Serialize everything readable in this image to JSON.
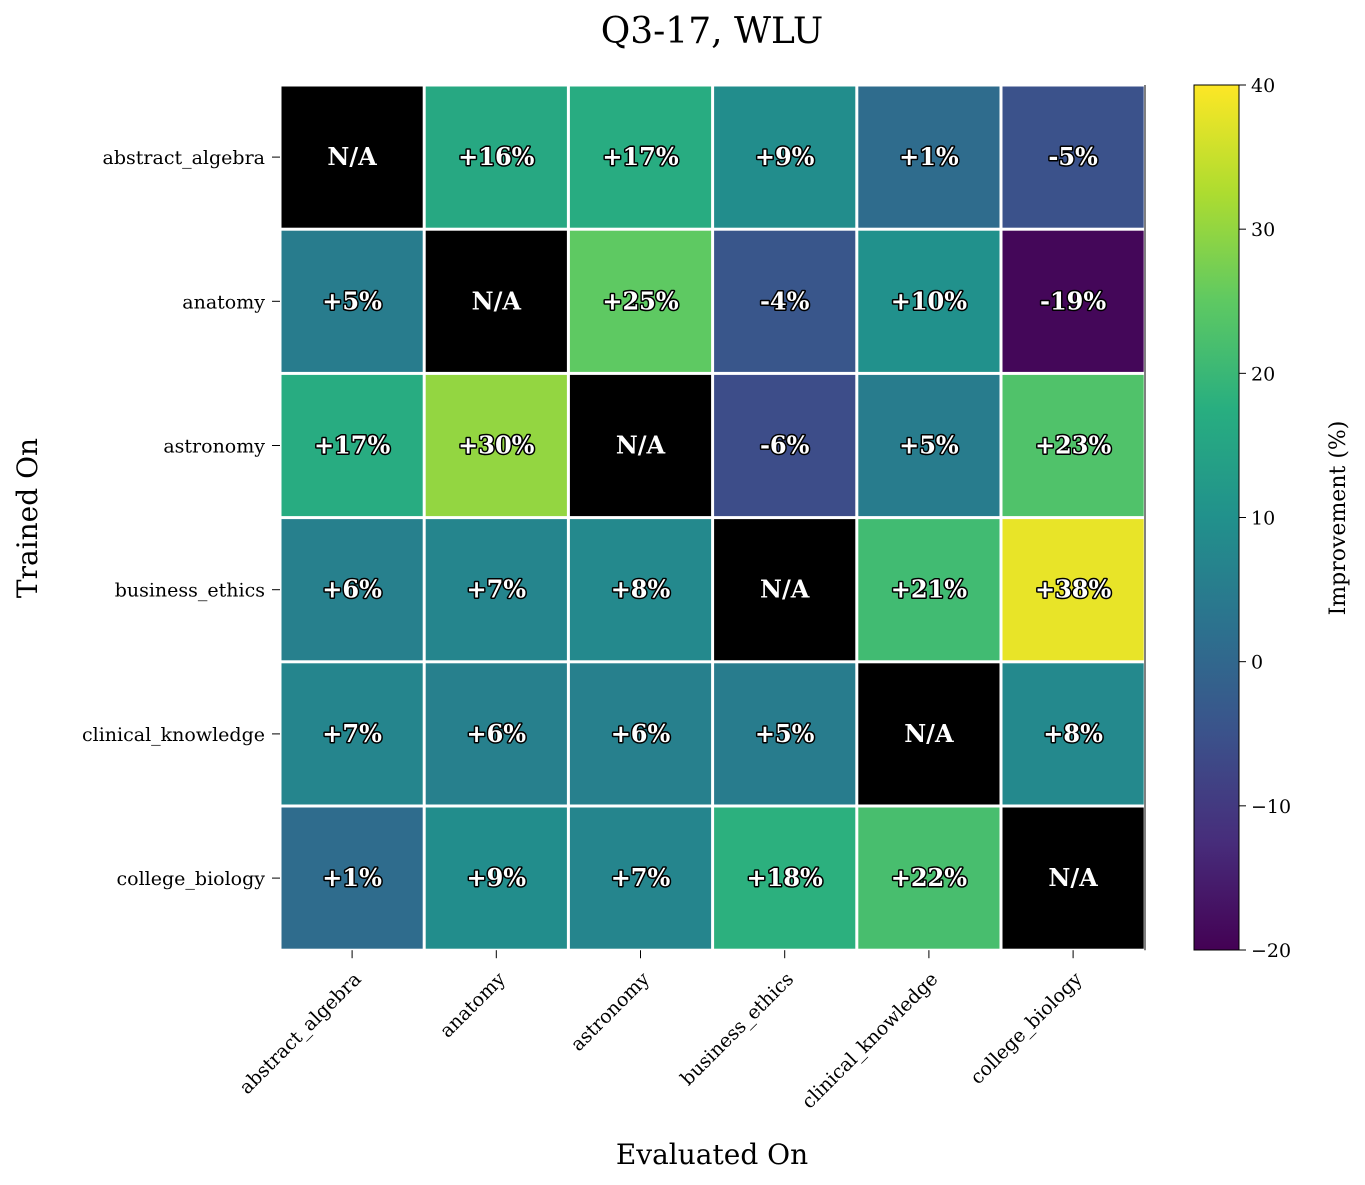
{
  "chart_data": {
    "type": "heatmap",
    "title": "Q3-17, WLU",
    "xlabel": "Evaluated On",
    "ylabel": "Trained On",
    "x_categories": [
      "abstract_algebra",
      "anatomy",
      "astronomy",
      "business_ethics",
      "clinical_knowledge",
      "college_biology"
    ],
    "y_categories": [
      "abstract_algebra",
      "anatomy",
      "astronomy",
      "business_ethics",
      "clinical_knowledge",
      "college_biology"
    ],
    "values": [
      [
        null,
        16,
        17,
        9,
        1,
        -5
      ],
      [
        5,
        null,
        25,
        -4,
        10,
        -19
      ],
      [
        17,
        30,
        null,
        -6,
        5,
        23
      ],
      [
        6,
        7,
        8,
        null,
        21,
        38
      ],
      [
        7,
        6,
        6,
        5,
        null,
        8
      ],
      [
        1,
        9,
        7,
        18,
        22,
        null
      ]
    ],
    "labels": [
      [
        "N/A",
        "+16%",
        "+17%",
        "+9%",
        "+1%",
        "-5%"
      ],
      [
        "+5%",
        "N/A",
        "+25%",
        "-4%",
        "+10%",
        "-19%"
      ],
      [
        "+17%",
        "+30%",
        "N/A",
        "-6%",
        "+5%",
        "+23%"
      ],
      [
        "+6%",
        "+7%",
        "+8%",
        "N/A",
        "+21%",
        "+38%"
      ],
      [
        "+7%",
        "+6%",
        "+6%",
        "+5%",
        "N/A",
        "+8%"
      ],
      [
        "+1%",
        "+9%",
        "+7%",
        "+18%",
        "+22%",
        "N/A"
      ]
    ],
    "colorbar": {
      "label": "Improvement (%)",
      "range": [
        -20,
        40
      ],
      "ticks": [
        40,
        30,
        20,
        10,
        0,
        -10,
        -20
      ],
      "tick_labels": [
        "40",
        "30",
        "20",
        "10",
        "0",
        "−10",
        "−20"
      ],
      "colormap": "viridis"
    },
    "na_color": "#000000",
    "grid": false
  }
}
